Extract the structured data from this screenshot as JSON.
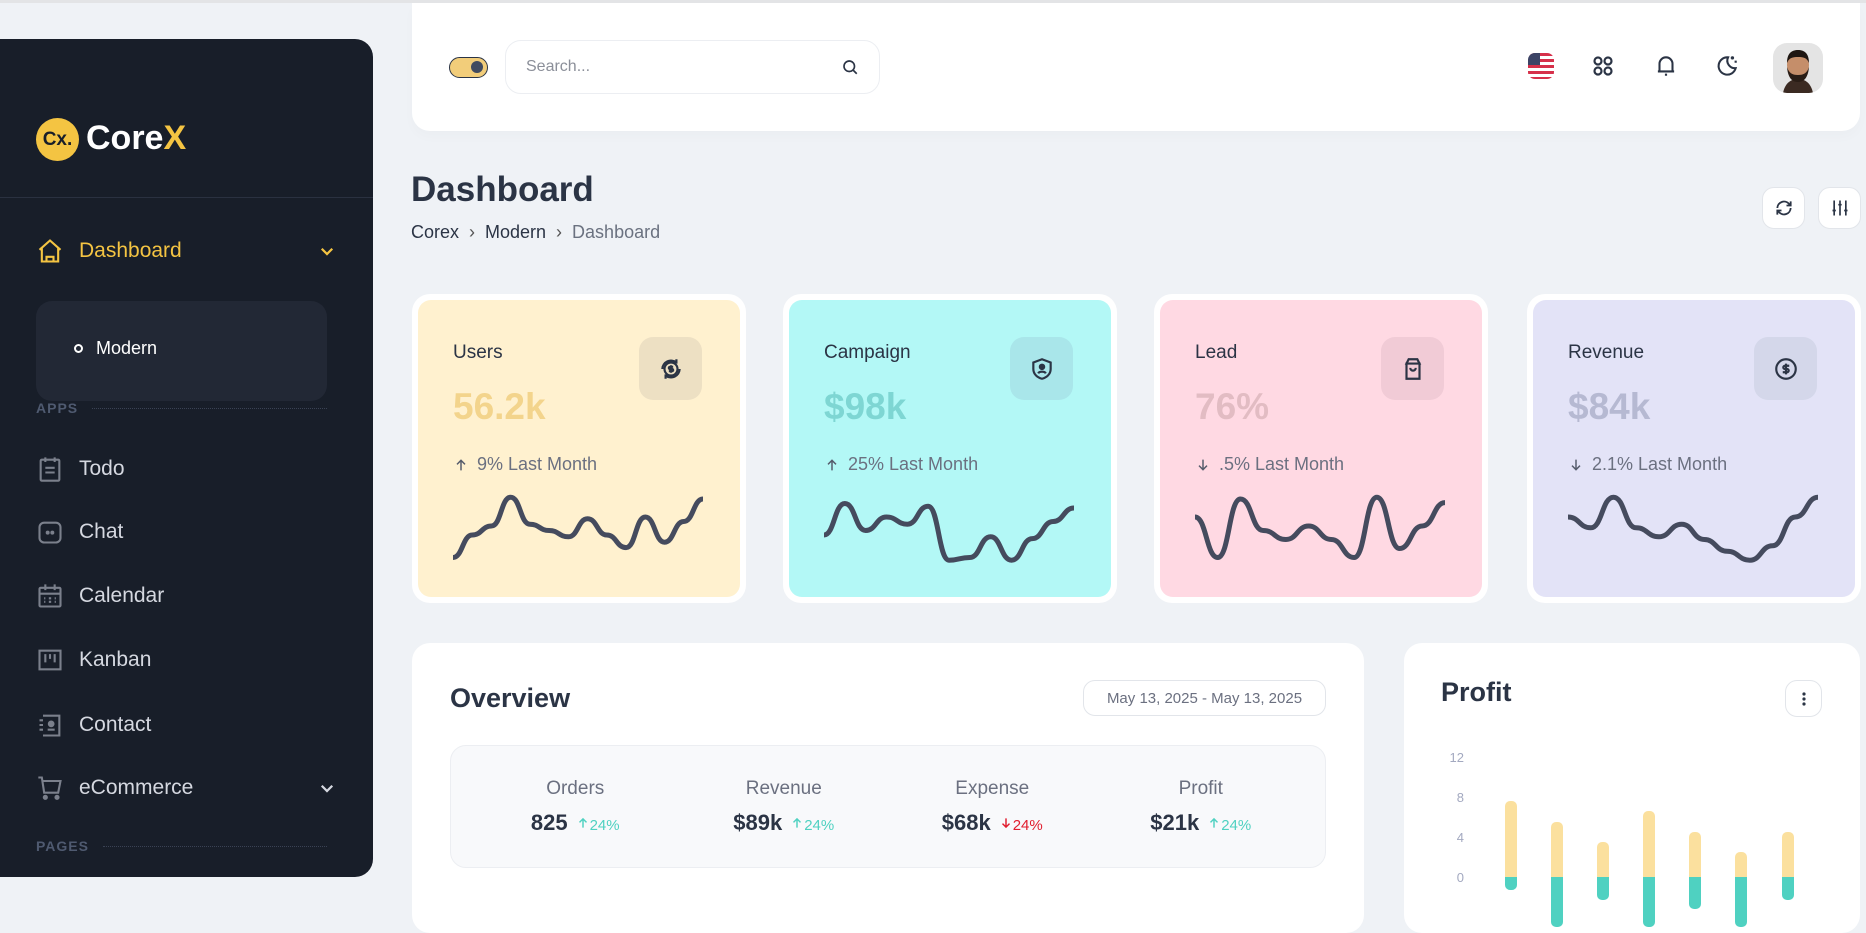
{
  "brand": {
    "mark": "Cx.",
    "name_main": "Core",
    "name_accent": "X"
  },
  "sidebar": {
    "dashboard_label": "Dashboard",
    "sub_items": [
      {
        "label": "Modern"
      }
    ],
    "sections": [
      {
        "label": "APPS"
      },
      {
        "label": "PAGES"
      }
    ],
    "apps": [
      {
        "label": "Todo",
        "icon": "todo-icon"
      },
      {
        "label": "Chat",
        "icon": "chat-icon"
      },
      {
        "label": "Calendar",
        "icon": "calendar-icon"
      },
      {
        "label": "Kanban",
        "icon": "kanban-icon"
      },
      {
        "label": "Contact",
        "icon": "contact-icon"
      },
      {
        "label": "eCommerce",
        "icon": "cart-icon"
      }
    ]
  },
  "header": {
    "search_placeholder": "Search...",
    "icons": [
      "us-flag-icon",
      "apps-grid-icon",
      "bell-icon",
      "moon-icon",
      "user-avatar"
    ]
  },
  "page": {
    "title": "Dashboard",
    "breadcrumb": [
      "Corex",
      "Modern",
      "Dashboard"
    ]
  },
  "stats": [
    {
      "label": "Users",
      "value": "56.2k",
      "trend": "9% Last Month",
      "direction": "up",
      "bg": "#fff1cf",
      "value_color": "#f3d48c",
      "icon_bg": "#ede0c3",
      "icon": "currency-exchange-icon"
    },
    {
      "label": "Campaign",
      "value": "$98k",
      "trend": "25% Last Month",
      "direction": "up",
      "bg": "#b3f8f6",
      "value_color": "#7ed6d3",
      "icon_bg": "#a9e6ea",
      "icon": "shield-user-icon"
    },
    {
      "label": "Lead",
      "value": "76%",
      "trend": ".5% Last Month",
      "direction": "down",
      "bg": "#ffd9e3",
      "value_color": "#e2bcc3",
      "icon_bg": "#f1cbd6",
      "icon": "shopping-bag-icon"
    },
    {
      "label": "Revenue",
      "value": "$84k",
      "trend": "2.1% Last Month",
      "direction": "down",
      "bg": "#e3e3f7",
      "value_color": "#b6b9d2",
      "icon_bg": "#d4d7ea",
      "icon": "dollar-circle-icon"
    }
  ],
  "overview": {
    "title": "Overview",
    "date_range": "May 13, 2025 - May 13, 2025",
    "items": [
      {
        "label": "Orders",
        "value": "825",
        "change": "24%",
        "direction": "up"
      },
      {
        "label": "Revenue",
        "value": "$89k",
        "change": "24%",
        "direction": "up"
      },
      {
        "label": "Expense",
        "value": "$68k",
        "change": "24%",
        "direction": "down"
      },
      {
        "label": "Profit",
        "value": "$21k",
        "change": "24%",
        "direction": "up"
      }
    ]
  },
  "profit": {
    "title": "Profit"
  },
  "colors": {
    "up": "#4fd1c1",
    "down": "#e11d2e",
    "accent": "#f4c442",
    "bar_pos": "#fbe09e",
    "bar_neg": "#4fd1c1"
  },
  "chart_data": [
    {
      "type": "bar",
      "title": "Profit",
      "y_ticks": [
        "12",
        "8",
        "4",
        "0"
      ],
      "ylim": [
        -5,
        12
      ],
      "series": [
        {
          "values": [
            7.6,
            5.5,
            3.5,
            6.6,
            4.5,
            2.5,
            4.5
          ]
        },
        {
          "values": [
            -1.3,
            -5,
            -2.3,
            -5,
            -3.2,
            -5,
            -2.3
          ]
        }
      ]
    },
    {
      "type": "line",
      "title": "Users sparkline",
      "values": [
        5,
        30,
        40,
        72,
        42,
        35,
        28,
        48,
        30,
        16,
        50,
        22,
        45,
        70
      ]
    },
    {
      "type": "line",
      "title": "Campaign sparkline",
      "values": [
        30,
        65,
        35,
        50,
        42,
        62,
        2,
        5,
        28,
        2,
        26,
        45,
        60
      ]
    },
    {
      "type": "line",
      "title": "Lead sparkline",
      "values": [
        50,
        5,
        70,
        35,
        25,
        40,
        25,
        5,
        72,
        15,
        40,
        66
      ]
    },
    {
      "type": "line",
      "title": "Revenue sparkline",
      "values": [
        50,
        38,
        72,
        38,
        28,
        42,
        25,
        12,
        2,
        18,
        50,
        72
      ]
    }
  ]
}
